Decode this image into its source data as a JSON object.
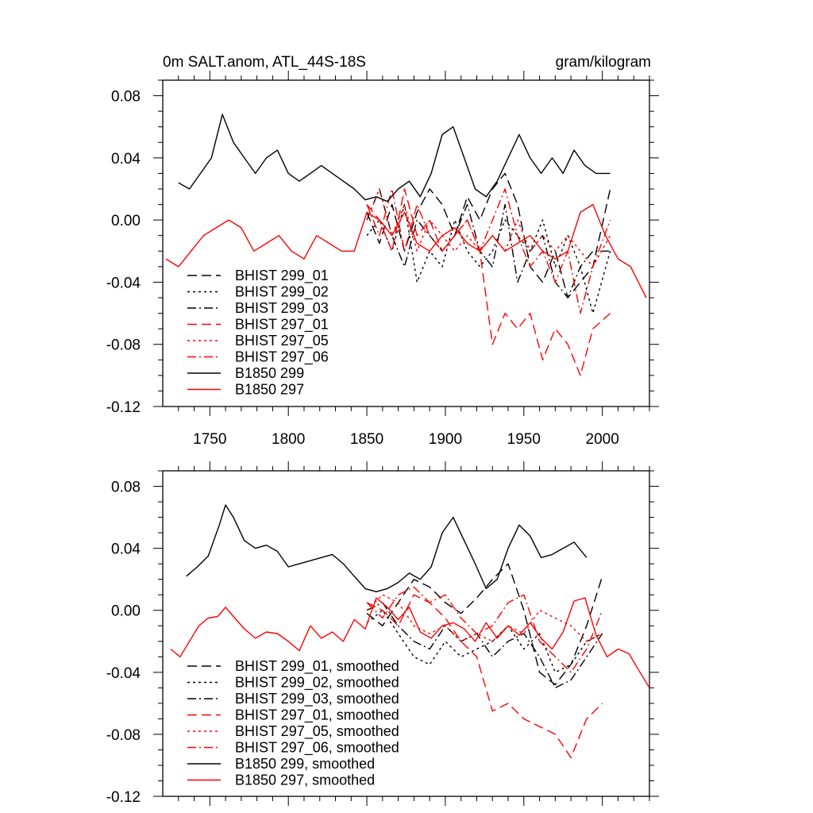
{
  "chart_data": [
    {
      "type": "line",
      "title_left": "0m SALT.anom, ATL_44S-18S",
      "title_right": "gram/kilogram",
      "xlim": [
        1720,
        2030
      ],
      "ylim": [
        -0.12,
        0.09
      ],
      "x_ticks": [
        1750,
        1800,
        1850,
        1900,
        1950,
        2000
      ],
      "x_tick_labels": [
        "1750",
        "1800",
        "1850",
        "1900",
        "1950",
        "2000"
      ],
      "y_ticks": [
        -0.12,
        -0.08,
        -0.04,
        0.0,
        0.04,
        0.08
      ],
      "y_tick_labels": [
        "-0.12",
        "-0.08",
        "-0.04",
        "0.00",
        "0.04",
        "0.08"
      ],
      "legend_position": "bottom-left",
      "series": [
        {
          "name": "BHIST 299_01",
          "color": "#000000",
          "dash": "dashed",
          "x": [
            1850,
            1858,
            1866,
            1874,
            1882,
            1890,
            1898,
            1906,
            1914,
            1922,
            1930,
            1938,
            1946,
            1954,
            1962,
            1970,
            1978,
            1986,
            1994,
            2005
          ],
          "y": [
            0.005,
            -0.015,
            0.01,
            -0.02,
            0.005,
            0.02,
            0.01,
            -0.01,
            0.015,
            0.0,
            0.02,
            0.03,
            0.01,
            -0.03,
            -0.04,
            -0.02,
            -0.05,
            -0.04,
            -0.03,
            0.02
          ]
        },
        {
          "name": "BHIST 299_02",
          "color": "#000000",
          "dash": "dotted",
          "x": [
            1850,
            1858,
            1866,
            1874,
            1882,
            1890,
            1898,
            1906,
            1914,
            1922,
            1930,
            1938,
            1946,
            1954,
            1962,
            1970,
            1978,
            1986,
            1994,
            2005
          ],
          "y": [
            -0.01,
            0.0,
            -0.02,
            0.01,
            -0.04,
            -0.02,
            -0.03,
            0.0,
            -0.02,
            -0.03,
            -0.02,
            0.0,
            -0.01,
            -0.02,
            0.0,
            -0.03,
            -0.01,
            -0.03,
            -0.06,
            -0.02
          ]
        },
        {
          "name": "BHIST 299_03",
          "color": "#000000",
          "dash": "dashdot",
          "x": [
            1850,
            1858,
            1866,
            1874,
            1882,
            1890,
            1898,
            1906,
            1914,
            1922,
            1930,
            1938,
            1946,
            1954,
            1962,
            1970,
            1978,
            1986,
            1994,
            2005
          ],
          "y": [
            0.0,
            0.02,
            -0.01,
            -0.03,
            0.0,
            -0.01,
            -0.02,
            -0.01,
            0.01,
            -0.02,
            -0.03,
            0.01,
            -0.04,
            -0.02,
            -0.01,
            -0.04,
            -0.05,
            -0.03,
            -0.02,
            -0.02
          ]
        },
        {
          "name": "BHIST 297_01",
          "color": "#ff0000",
          "dash": "dashed",
          "x": [
            1850,
            1858,
            1866,
            1874,
            1882,
            1890,
            1898,
            1906,
            1914,
            1922,
            1930,
            1938,
            1946,
            1954,
            1962,
            1970,
            1978,
            1986,
            1994,
            2005
          ],
          "y": [
            0.01,
            0.0,
            -0.02,
            0.02,
            -0.01,
            0.0,
            -0.02,
            -0.01,
            0.0,
            -0.02,
            -0.08,
            -0.06,
            -0.07,
            -0.06,
            -0.09,
            -0.07,
            -0.08,
            -0.1,
            -0.07,
            -0.06
          ]
        },
        {
          "name": "BHIST 297_05",
          "color": "#ff0000",
          "dash": "dotted",
          "x": [
            1850,
            1858,
            1866,
            1874,
            1882,
            1890,
            1898,
            1906,
            1914,
            1922,
            1930,
            1938,
            1946,
            1954,
            1962,
            1970,
            1978,
            1986,
            1994,
            2005
          ],
          "y": [
            0.0,
            0.02,
            -0.01,
            0.01,
            -0.02,
            0.0,
            -0.01,
            -0.02,
            -0.01,
            -0.02,
            -0.01,
            -0.02,
            0.0,
            -0.02,
            -0.01,
            -0.02,
            -0.01,
            -0.02,
            -0.03,
            -0.01
          ]
        },
        {
          "name": "BHIST 297_06",
          "color": "#ff0000",
          "dash": "dashdot",
          "x": [
            1850,
            1858,
            1866,
            1874,
            1882,
            1890,
            1898,
            1906,
            1914,
            1922,
            1930,
            1938,
            1946,
            1954,
            1962,
            1970,
            1978,
            1986,
            1994,
            2005
          ],
          "y": [
            0.01,
            -0.01,
            0.02,
            -0.02,
            0.01,
            -0.01,
            -0.02,
            -0.01,
            0.0,
            -0.02,
            0.0,
            0.02,
            -0.01,
            -0.03,
            -0.02,
            -0.04,
            -0.02,
            -0.06,
            -0.03,
            0.0
          ]
        },
        {
          "name": "B1850 299",
          "color": "#000000",
          "dash": "solid",
          "x": [
            1730,
            1737,
            1744,
            1751,
            1758,
            1765,
            1772,
            1779,
            1786,
            1793,
            1800,
            1807,
            1814,
            1821,
            1828,
            1835,
            1842,
            1849,
            1856,
            1863,
            1870,
            1877,
            1884,
            1891,
            1898,
            1905,
            1912,
            1919,
            1926,
            1933,
            1940,
            1947,
            1954,
            1961,
            1968,
            1975,
            1982,
            1989,
            1996,
            2005
          ],
          "y": [
            0.024,
            0.02,
            0.03,
            0.04,
            0.068,
            0.05,
            0.04,
            0.03,
            0.04,
            0.045,
            0.03,
            0.025,
            0.03,
            0.035,
            0.03,
            0.025,
            0.02,
            0.013,
            0.015,
            0.012,
            0.02,
            0.025,
            0.015,
            0.03,
            0.055,
            0.06,
            0.04,
            0.02,
            0.015,
            0.025,
            0.04,
            0.055,
            0.04,
            0.03,
            0.04,
            0.03,
            0.045,
            0.035,
            0.03,
            0.03
          ]
        },
        {
          "name": "B1850 297",
          "color": "#ff0000",
          "dash": "solid",
          "x": [
            1722,
            1730,
            1738,
            1746,
            1754,
            1762,
            1770,
            1778,
            1786,
            1794,
            1802,
            1810,
            1818,
            1826,
            1834,
            1842,
            1850,
            1858,
            1866,
            1874,
            1882,
            1890,
            1898,
            1906,
            1914,
            1922,
            1930,
            1938,
            1946,
            1954,
            1962,
            1970,
            1978,
            1986,
            1994,
            2002,
            2010,
            2018,
            2028
          ],
          "y": [
            -0.025,
            -0.03,
            -0.02,
            -0.01,
            -0.005,
            0.0,
            -0.005,
            -0.02,
            -0.015,
            -0.01,
            -0.02,
            -0.025,
            -0.01,
            -0.015,
            -0.02,
            -0.02,
            0.005,
            0.0,
            -0.01,
            0.005,
            -0.015,
            -0.02,
            -0.01,
            -0.005,
            -0.015,
            -0.02,
            -0.01,
            -0.02,
            -0.015,
            -0.01,
            -0.02,
            -0.025,
            -0.02,
            0.005,
            0.01,
            -0.01,
            -0.025,
            -0.03,
            -0.05
          ]
        }
      ]
    },
    {
      "type": "line",
      "title_left": "",
      "title_right": "",
      "xlim": [
        1720,
        2030
      ],
      "ylim": [
        -0.12,
        0.09
      ],
      "x_ticks": [
        1750,
        1800,
        1850,
        1900,
        1950,
        2000
      ],
      "x_tick_labels": [
        "",
        "",
        "",
        "",
        "",
        ""
      ],
      "y_ticks": [
        -0.12,
        -0.08,
        -0.04,
        0.0,
        0.04,
        0.08
      ],
      "y_tick_labels": [
        "-0.12",
        "-0.08",
        "-0.04",
        "0.00",
        "0.04",
        "0.08"
      ],
      "legend_position": "bottom-left",
      "series": [
        {
          "name": "BHIST 299_01, smoothed",
          "color": "#000000",
          "dash": "dashed",
          "x": [
            1850,
            1860,
            1870,
            1880,
            1890,
            1900,
            1910,
            1920,
            1930,
            1940,
            1950,
            1960,
            1970,
            1980,
            1990,
            2000
          ],
          "y": [
            -0.002,
            -0.01,
            0.005,
            0.02,
            0.015,
            0.005,
            -0.002,
            0.008,
            0.02,
            0.03,
            0.0,
            -0.04,
            -0.048,
            -0.035,
            -0.01,
            0.022
          ]
        },
        {
          "name": "BHIST 299_02, smoothed",
          "color": "#000000",
          "dash": "dotted",
          "x": [
            1850,
            1860,
            1870,
            1880,
            1890,
            1900,
            1910,
            1920,
            1930,
            1940,
            1950,
            1960,
            1970,
            1980,
            1990,
            2000
          ],
          "y": [
            -0.008,
            0.0,
            -0.015,
            -0.03,
            -0.035,
            -0.02,
            -0.03,
            -0.025,
            -0.02,
            -0.01,
            -0.025,
            -0.015,
            -0.04,
            -0.035,
            -0.02,
            -0.015
          ]
        },
        {
          "name": "BHIST 299_03, smoothed",
          "color": "#000000",
          "dash": "dashdot",
          "x": [
            1850,
            1860,
            1870,
            1880,
            1890,
            1900,
            1910,
            1920,
            1930,
            1940,
            1950,
            1960,
            1970,
            1980,
            1990,
            2000
          ],
          "y": [
            0.0,
            0.005,
            -0.01,
            -0.02,
            -0.025,
            -0.01,
            -0.02,
            -0.015,
            -0.03,
            -0.02,
            -0.015,
            -0.03,
            -0.05,
            -0.045,
            -0.03,
            -0.015
          ]
        },
        {
          "name": "BHIST 297_01, smoothed",
          "color": "#ff0000",
          "dash": "dashed",
          "x": [
            1850,
            1860,
            1870,
            1880,
            1890,
            1900,
            1910,
            1920,
            1930,
            1940,
            1950,
            1960,
            1970,
            1980,
            1990,
            2000
          ],
          "y": [
            0.005,
            0.0,
            -0.01,
            0.01,
            0.005,
            -0.005,
            -0.02,
            -0.03,
            -0.065,
            -0.06,
            -0.07,
            -0.075,
            -0.08,
            -0.095,
            -0.07,
            -0.06
          ]
        },
        {
          "name": "BHIST 297_05, smoothed",
          "color": "#ff0000",
          "dash": "dotted",
          "x": [
            1850,
            1860,
            1870,
            1880,
            1890,
            1900,
            1910,
            1920,
            1930,
            1940,
            1950,
            1960,
            1970,
            1980,
            1990,
            2000
          ],
          "y": [
            0.0,
            0.01,
            0.005,
            -0.01,
            -0.015,
            -0.01,
            -0.02,
            -0.015,
            -0.02,
            -0.01,
            -0.015,
            0.0,
            -0.005,
            -0.01,
            -0.02,
            -0.015
          ]
        },
        {
          "name": "BHIST 297_06, smoothed",
          "color": "#ff0000",
          "dash": "dashdot",
          "x": [
            1850,
            1860,
            1870,
            1880,
            1890,
            1900,
            1910,
            1920,
            1930,
            1940,
            1950,
            1960,
            1970,
            1980,
            1990,
            2000
          ],
          "y": [
            0.005,
            -0.005,
            0.01,
            0.015,
            0.005,
            0.01,
            -0.005,
            -0.015,
            -0.01,
            0.005,
            0.01,
            -0.02,
            -0.03,
            -0.04,
            -0.025,
            0.0
          ]
        },
        {
          "name": "B1850 299, smoothed",
          "color": "#000000",
          "dash": "solid",
          "x": [
            1735,
            1742,
            1749,
            1756,
            1760,
            1765,
            1772,
            1779,
            1786,
            1793,
            1800,
            1807,
            1814,
            1821,
            1828,
            1835,
            1842,
            1849,
            1856,
            1863,
            1870,
            1877,
            1884,
            1891,
            1898,
            1905,
            1912,
            1919,
            1926,
            1933,
            1940,
            1947,
            1954,
            1961,
            1968,
            1975,
            1982,
            1990
          ],
          "y": [
            0.022,
            0.028,
            0.035,
            0.055,
            0.068,
            0.06,
            0.045,
            0.04,
            0.042,
            0.038,
            0.028,
            0.03,
            0.032,
            0.034,
            0.036,
            0.03,
            0.022,
            0.014,
            0.012,
            0.014,
            0.018,
            0.024,
            0.02,
            0.028,
            0.05,
            0.06,
            0.045,
            0.03,
            0.014,
            0.02,
            0.04,
            0.055,
            0.048,
            0.034,
            0.036,
            0.04,
            0.044,
            0.034
          ]
        },
        {
          "name": "B1850 297, smoothed",
          "color": "#ff0000",
          "dash": "solid",
          "x": [
            1725,
            1731,
            1737,
            1743,
            1749,
            1755,
            1760,
            1765,
            1772,
            1779,
            1786,
            1793,
            1800,
            1807,
            1814,
            1821,
            1828,
            1835,
            1842,
            1849,
            1856,
            1863,
            1870,
            1877,
            1884,
            1891,
            1898,
            1905,
            1912,
            1919,
            1926,
            1933,
            1940,
            1947,
            1954,
            1961,
            1968,
            1975,
            1982,
            1989,
            1996,
            2003,
            2010,
            2017,
            2024,
            2030
          ],
          "y": [
            -0.025,
            -0.03,
            -0.02,
            -0.01,
            -0.005,
            -0.004,
            0.002,
            -0.004,
            -0.012,
            -0.018,
            -0.014,
            -0.015,
            -0.02,
            -0.026,
            -0.01,
            -0.018,
            -0.014,
            -0.02,
            -0.006,
            -0.012,
            0.008,
            0.002,
            -0.006,
            0.002,
            -0.014,
            -0.018,
            -0.01,
            -0.008,
            -0.012,
            -0.02,
            -0.008,
            -0.018,
            -0.01,
            -0.016,
            -0.008,
            -0.018,
            -0.025,
            -0.014,
            0.006,
            0.008,
            -0.016,
            -0.03,
            -0.025,
            -0.028,
            -0.04,
            -0.05
          ]
        }
      ]
    }
  ]
}
